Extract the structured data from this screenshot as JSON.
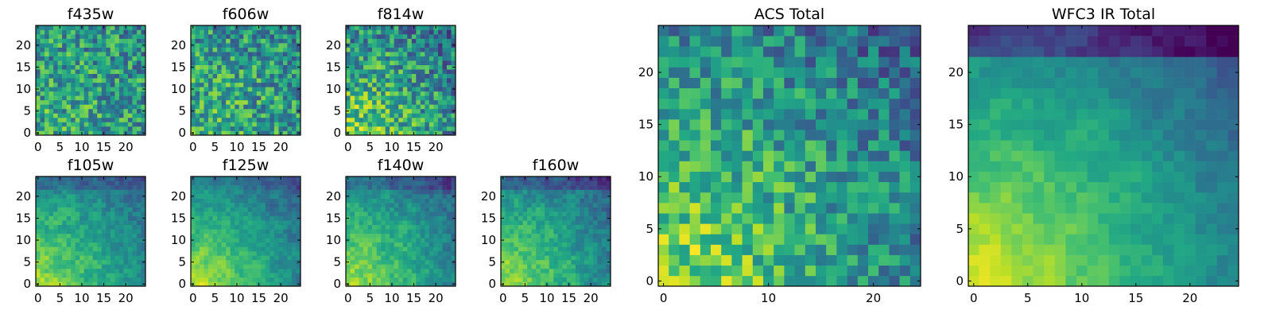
{
  "chart_data": [
    {
      "type": "heatmap",
      "title": "f435w",
      "x_ticks": [
        0,
        5,
        10,
        15,
        20
      ],
      "y_ticks": [
        0,
        5,
        10,
        15,
        20
      ],
      "xlim": [
        0,
        25
      ],
      "ylim": [
        0,
        25
      ],
      "grid_size": [
        25,
        25
      ],
      "colormap": "viridis",
      "grid": false,
      "trend": "noisy, slightly brighter lower-left"
    },
    {
      "type": "heatmap",
      "title": "f606w",
      "x_ticks": [
        0,
        5,
        10,
        15,
        20
      ],
      "y_ticks": [
        0,
        5,
        10,
        15,
        20
      ],
      "xlim": [
        0,
        25
      ],
      "ylim": [
        0,
        25
      ],
      "grid_size": [
        25,
        25
      ],
      "colormap": "viridis",
      "grid": false,
      "trend": "noisy, slightly brighter lower-left"
    },
    {
      "type": "heatmap",
      "title": "f814w",
      "x_ticks": [
        0,
        5,
        10,
        15,
        20
      ],
      "y_ticks": [
        0,
        5,
        10,
        15,
        20
      ],
      "xlim": [
        0,
        25
      ],
      "ylim": [
        0,
        25
      ],
      "grid_size": [
        25,
        25
      ],
      "colormap": "viridis",
      "grid": false,
      "trend": "bright lower-left, noisy elsewhere"
    },
    {
      "type": "heatmap",
      "title": "f105w",
      "x_ticks": [
        0,
        5,
        10,
        15,
        20
      ],
      "y_ticks": [
        0,
        5,
        10,
        15,
        20
      ],
      "xlim": [
        0,
        25
      ],
      "ylim": [
        0,
        25
      ],
      "grid_size": [
        25,
        25
      ],
      "colormap": "viridis",
      "grid": false,
      "trend": "bright lower-left, darker upper region"
    },
    {
      "type": "heatmap",
      "title": "f125w",
      "x_ticks": [
        0,
        5,
        10,
        15,
        20
      ],
      "y_ticks": [
        0,
        5,
        10,
        15,
        20
      ],
      "xlim": [
        0,
        25
      ],
      "ylim": [
        0,
        25
      ],
      "grid_size": [
        25,
        25
      ],
      "colormap": "viridis",
      "grid": false,
      "trend": "bright lower-left, darker upper region"
    },
    {
      "type": "heatmap",
      "title": "f140w",
      "x_ticks": [
        0,
        5,
        10,
        15,
        20
      ],
      "y_ticks": [
        0,
        5,
        10,
        15,
        20
      ],
      "xlim": [
        0,
        25
      ],
      "ylim": [
        0,
        25
      ],
      "grid_size": [
        25,
        25
      ],
      "colormap": "viridis",
      "grid": false,
      "trend": "bright lower-left, darker upper region"
    },
    {
      "type": "heatmap",
      "title": "f160w",
      "x_ticks": [
        0,
        5,
        10,
        15,
        20
      ],
      "y_ticks": [
        0,
        5,
        10,
        15,
        20
      ],
      "xlim": [
        0,
        25
      ],
      "ylim": [
        0,
        25
      ],
      "grid_size": [
        25,
        25
      ],
      "colormap": "viridis",
      "grid": false,
      "trend": "bright lower-left, darker upper region"
    },
    {
      "type": "heatmap",
      "title": "ACS Total",
      "x_ticks": [
        0,
        10,
        20
      ],
      "y_ticks": [
        0,
        5,
        10,
        15,
        20
      ],
      "xlim": [
        0,
        25
      ],
      "ylim": [
        0,
        25
      ],
      "grid_size": [
        25,
        25
      ],
      "colormap": "viridis",
      "grid": false,
      "trend": "bright yellow lower-left, mixed green elsewhere"
    },
    {
      "type": "heatmap",
      "title": "WFC3 IR Total",
      "x_ticks": [
        0,
        5,
        10,
        15,
        20
      ],
      "y_ticks": [
        0,
        5,
        10,
        15,
        20
      ],
      "xlim": [
        0,
        25
      ],
      "ylim": [
        0,
        25
      ],
      "grid_size": [
        25,
        25
      ],
      "colormap": "viridis",
      "grid": false,
      "trend": "bright yellow lower-left, dark blue along top edge"
    }
  ]
}
